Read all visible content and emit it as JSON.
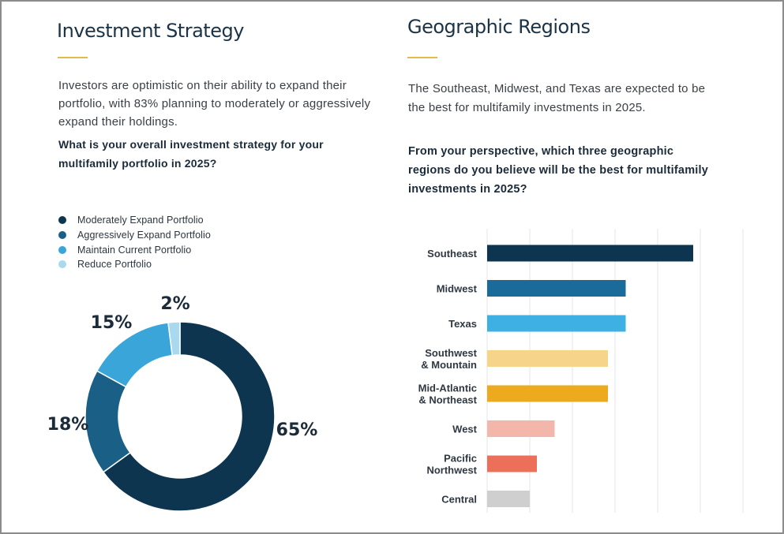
{
  "left": {
    "title": "Investment Strategy",
    "intro": "Investors are optimistic on their ability to expand their portfolio, with 83% planning to moderately or aggressively expand their holdings.",
    "intro_lines": [
      "Investors are optimistic on their ability to expand their",
      "portfolio, with 83% planning to moderately or aggressively",
      "expand their holdings."
    ],
    "question_lines": [
      "What is your overall investment strategy for your",
      "multifamily portfolio in 2025?"
    ]
  },
  "right": {
    "title": "Geographic Regions",
    "intro_lines": [
      "The Southeast, Midwest, and Texas are expected to be",
      "the best for multifamily investments in 2025."
    ],
    "question_lines": [
      "From your perspective, which three geographic",
      "regions do you believe will be the best for multifamily",
      "investments in 2025?"
    ]
  },
  "chart_data": [
    {
      "type": "pie",
      "variant": "donut",
      "categories": [
        "Moderately Expand Portfolio",
        "Aggressively Expand Portfolio",
        "Maintain Current Portfolio",
        "Reduce Portfolio"
      ],
      "values": [
        65,
        18,
        15,
        2
      ],
      "value_labels": [
        "65%",
        "18%",
        "15%",
        "2%"
      ],
      "colors": [
        "#0e3550",
        "#1a5f86",
        "#39a5d9",
        "#a9d9ef"
      ],
      "legend_position": "top-left"
    },
    {
      "type": "bar",
      "orientation": "horizontal",
      "categories": [
        "Southeast",
        "Midwest",
        "Texas",
        "Southwest & Mountain",
        "Mid-Atlantic & Northeast",
        "West",
        "Pacific Northwest",
        "Central"
      ],
      "category_lines": [
        [
          "Southeast"
        ],
        [
          "Midwest"
        ],
        [
          "Texas"
        ],
        [
          "Southwest",
          "& Mountain"
        ],
        [
          "Mid-Atlantic",
          "& Northeast"
        ],
        [
          "West"
        ],
        [
          "Pacific",
          "Northwest"
        ],
        [
          "Central"
        ]
      ],
      "values": [
        58,
        39,
        39,
        34,
        34,
        19,
        14,
        12
      ],
      "colors": [
        "#0e3550",
        "#1a6b99",
        "#3fb0e4",
        "#f6d58a",
        "#eeaa1f",
        "#f3b6aa",
        "#ec6f5a",
        "#cfcfcf"
      ],
      "xlim": [
        0,
        72
      ],
      "grid": true
    }
  ]
}
